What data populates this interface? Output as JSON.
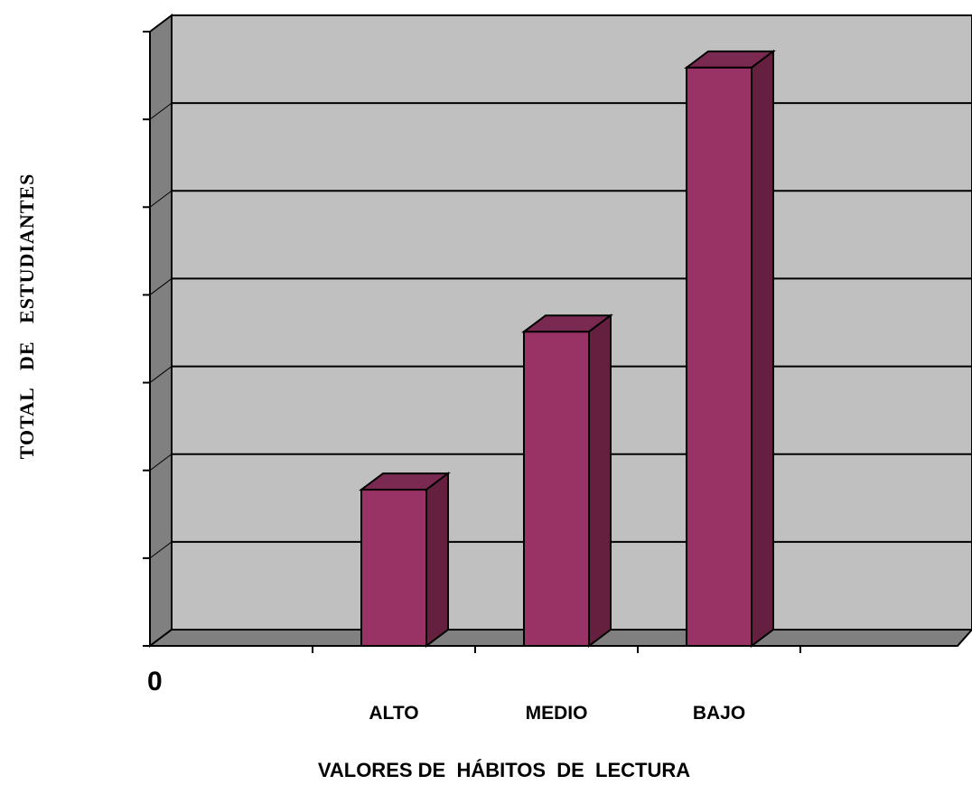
{
  "chart_data": {
    "type": "bar",
    "style": "3d",
    "categories": [
      "ALTO",
      "MEDIO",
      "BAJO"
    ],
    "values": [
      1.78,
      3.58,
      6.59
    ],
    "ylim": [
      0,
      7
    ],
    "ytick_label": "0",
    "xlabel": "VALORES DE  HÁBITOS  DE  LECTURA",
    "ylabel": "TOTAL   DE   ESTUDIANTES",
    "grid": true,
    "legend": "none"
  },
  "colors": {
    "plot_back": "#c0c0c0",
    "plot_side": "#808080",
    "bar_front": "#993366",
    "bar_side": "#66203f",
    "bar_top": "#7a2950"
  }
}
